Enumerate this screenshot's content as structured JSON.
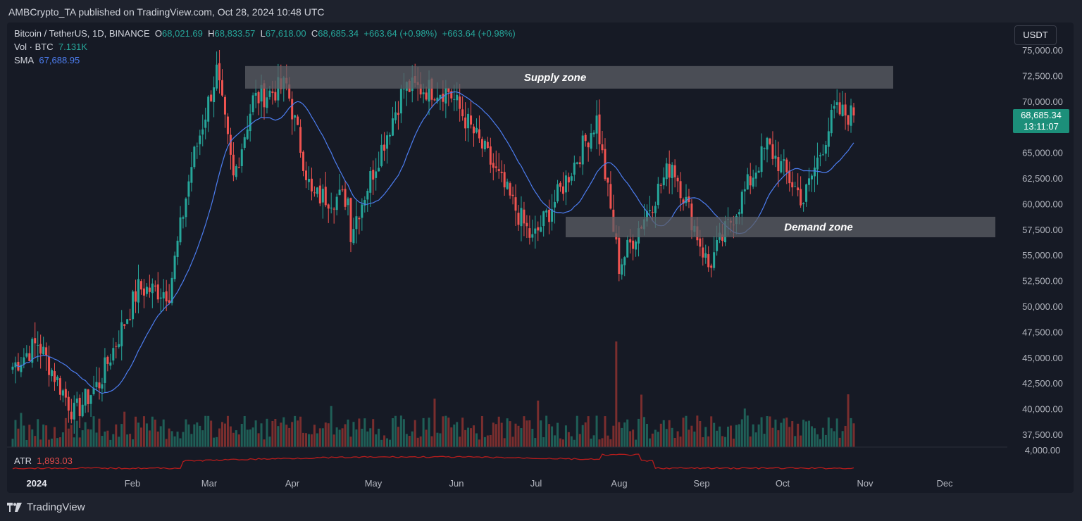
{
  "publisher_line": "AMBCrypto_TA published on TradingView.com, Oct 28, 2024 10:48 UTC",
  "legend": {
    "symbol": "Bitcoin / TetherUS, 1D, BINANCE",
    "o_label": "O",
    "o_value": "68,021.69",
    "h_label": "H",
    "h_value": "68,833.57",
    "l_label": "L",
    "l_value": "67,618.00",
    "c_label": "C",
    "c_value": "68,685.34",
    "change": "+663.64 (+0.98%)",
    "change2": "+663.64 (+0.98%)",
    "vol_label": "Vol · BTC",
    "vol_value": "7.131K",
    "sma_label": "SMA",
    "sma_value": "67,688.95",
    "atr_label": "ATR",
    "atr_value": "1,893.03"
  },
  "currency_button": "USDT",
  "last_price": {
    "price": "68,685.34",
    "countdown": "13:11:07"
  },
  "branding": "TradingView",
  "colors": {
    "up": "#26a69a",
    "down": "#ef5350",
    "sma": "#4c7df0",
    "atr": "#b71c1c",
    "zone": "#5c5f66"
  },
  "chart_data": {
    "type": "candlestick",
    "title": "Bitcoin / TetherUS, 1D, BINANCE",
    "x_tick_labels": [
      "2024",
      "Feb",
      "Mar",
      "Apr",
      "May",
      "Jun",
      "Jul",
      "Aug",
      "Sep",
      "Oct",
      "Nov",
      "Dec"
    ],
    "y_tick_labels": [
      "75,000.00",
      "72,500.00",
      "70,000.00",
      "65,000.00",
      "62,500.00",
      "60,000.00",
      "57,500.00",
      "55,000.00",
      "52,500.00",
      "50,000.00",
      "47,500.00",
      "45,000.00",
      "42,500.00",
      "40,000.00",
      "37,500.00"
    ],
    "atr_tick_label": "4,000.00",
    "ylim": [
      36700,
      76400
    ],
    "zones": [
      {
        "label": "Supply zone",
        "from": 71300,
        "to": 73500
      },
      {
        "label": "Demand zone",
        "from": 56800,
        "to": 58800
      }
    ],
    "monthly_anchors": [
      {
        "date": "Jan 01",
        "close": 44200
      },
      {
        "date": "Jan 10",
        "close": 46500
      },
      {
        "date": "Jan 23",
        "close": 39600
      },
      {
        "date": "Feb 01",
        "close": 42600
      },
      {
        "date": "Feb 15",
        "close": 51800
      },
      {
        "date": "Feb 26",
        "close": 51500
      },
      {
        "date": "Mar 05",
        "close": 63800
      },
      {
        "date": "Mar 14",
        "close": 73000
      },
      {
        "date": "Mar 20",
        "close": 62500
      },
      {
        "date": "Mar 27",
        "close": 70200
      },
      {
        "date": "Apr 08",
        "close": 71600
      },
      {
        "date": "Apr 17",
        "close": 60800
      },
      {
        "date": "Apr 30",
        "close": 60600
      },
      {
        "date": "May 01",
        "close": 57400
      },
      {
        "date": "May 20",
        "close": 71400
      },
      {
        "date": "Jun 05",
        "close": 71100
      },
      {
        "date": "Jun 18",
        "close": 65100
      },
      {
        "date": "Jul 05",
        "close": 56500
      },
      {
        "date": "Jul 14",
        "close": 60800
      },
      {
        "date": "Jul 28",
        "close": 68300
      },
      {
        "date": "Aug 05",
        "close": 54000
      },
      {
        "date": "Aug 24",
        "close": 64100
      },
      {
        "date": "Sep 06",
        "close": 53900
      },
      {
        "date": "Sep 27",
        "close": 65800
      },
      {
        "date": "Oct 10",
        "close": 60400
      },
      {
        "date": "Oct 21",
        "close": 69000
      },
      {
        "date": "Oct 28",
        "close": 68685
      }
    ]
  }
}
